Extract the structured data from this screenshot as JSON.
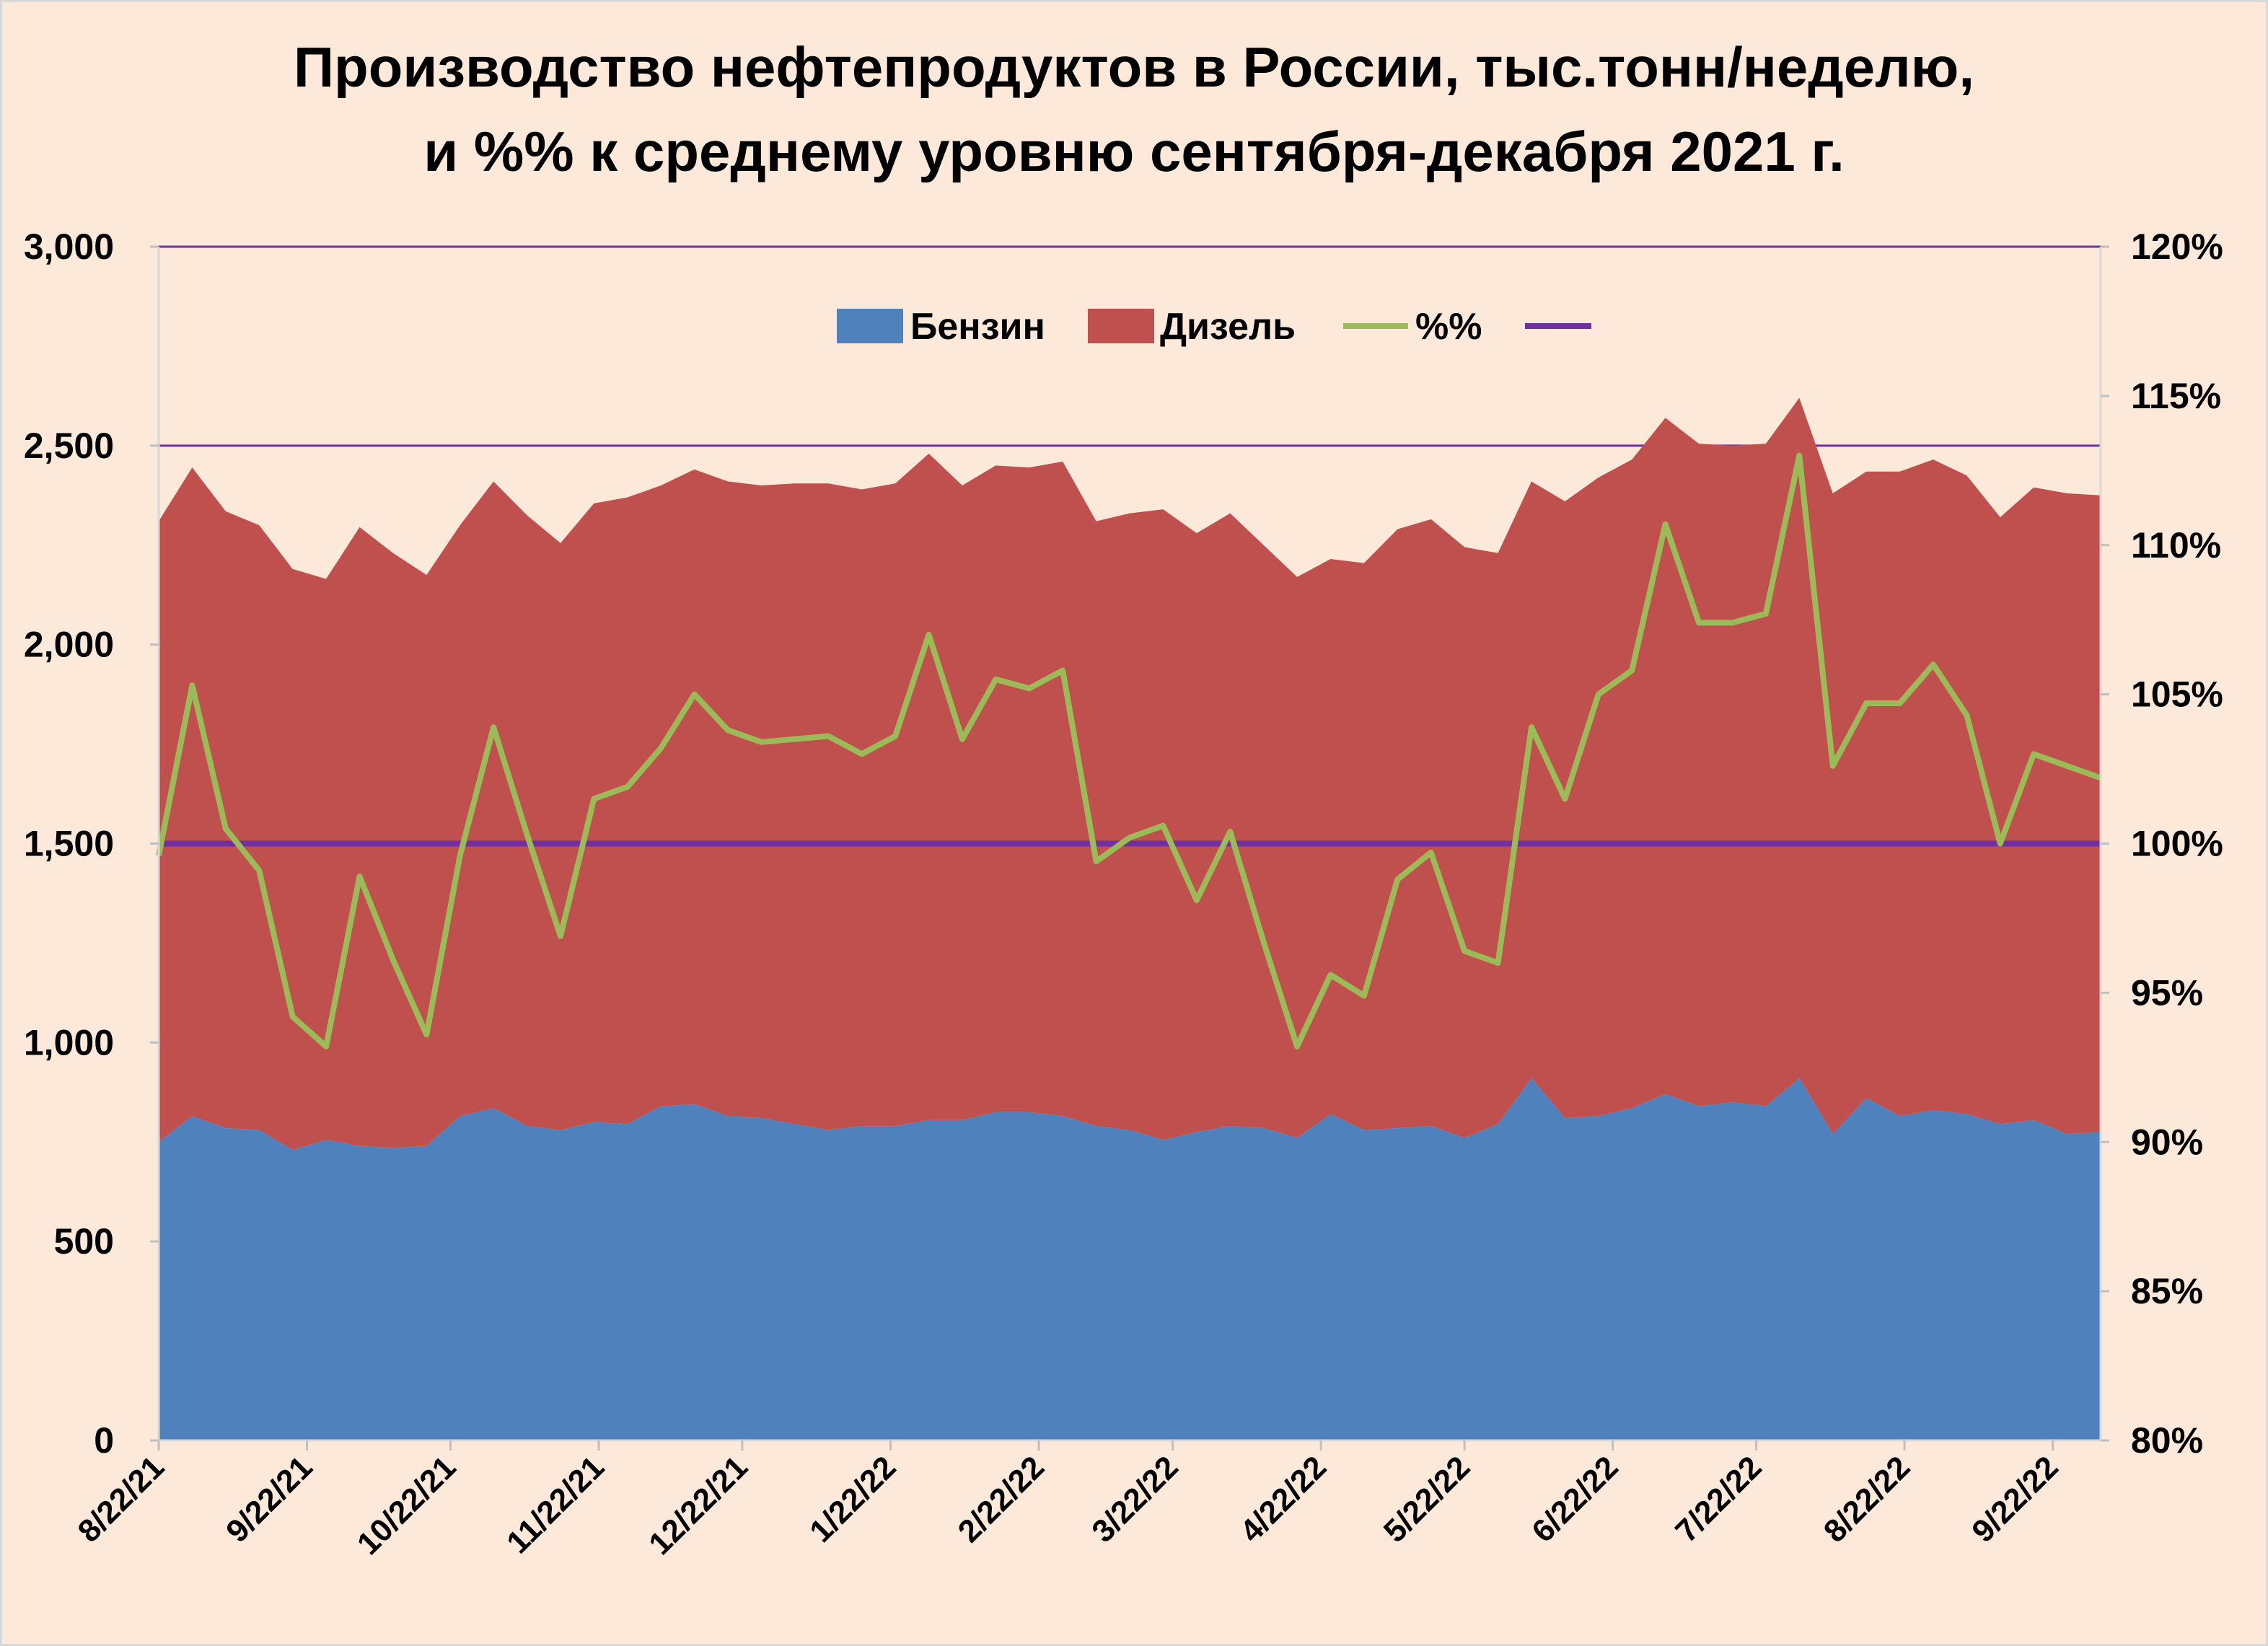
{
  "chart_data": {
    "type": "area",
    "title_line1": "Производство нефтепродуктов в России, тыс.тонн/неделю,",
    "title_line2": "и %% к среднему уровню сентября-декабря 2021 г.",
    "series": [
      {
        "name": "Бензин",
        "kind": "stacked-area",
        "color": "#4f81bd",
        "values": [
          750,
          815,
          785,
          780,
          730,
          755,
          740,
          735,
          740,
          815,
          835,
          790,
          780,
          800,
          795,
          840,
          845,
          815,
          810,
          795,
          780,
          790,
          790,
          805,
          805,
          825,
          825,
          815,
          790,
          780,
          755,
          775,
          790,
          785,
          760,
          820,
          780,
          785,
          790,
          760,
          795,
          910,
          810,
          815,
          835,
          870,
          840,
          850,
          840,
          910,
          770,
          860,
          815,
          830,
          820,
          795,
          805,
          770,
          775
        ]
      },
      {
        "name": "Дизель",
        "kind": "stacked-area",
        "color": "#c0504d",
        "values": [
          1560,
          1630,
          1550,
          1520,
          1460,
          1410,
          1555,
          1495,
          1435,
          1485,
          1575,
          1535,
          1475,
          1555,
          1575,
          1560,
          1595,
          1595,
          1590,
          1610,
          1625,
          1600,
          1615,
          1675,
          1595,
          1625,
          1620,
          1645,
          1520,
          1550,
          1585,
          1505,
          1540,
          1465,
          1410,
          1395,
          1425,
          1505,
          1525,
          1485,
          1435,
          1500,
          1550,
          1605,
          1630,
          1700,
          1665,
          1650,
          1665,
          1710,
          1610,
          1575,
          1620,
          1635,
          1605,
          1525,
          1590,
          1610,
          1600
        ]
      },
      {
        "name": "%%",
        "kind": "line",
        "color": "#9bbb59",
        "axis": "right",
        "values": [
          99.6,
          105.3,
          100.5,
          99.1,
          94.2,
          93.2,
          98.9,
          96.1,
          93.6,
          99.6,
          103.9,
          100.3,
          96.9,
          101.5,
          101.9,
          103.2,
          105.0,
          103.8,
          103.4,
          103.5,
          103.6,
          103.0,
          103.6,
          107.0,
          103.5,
          105.5,
          105.2,
          105.8,
          99.4,
          100.2,
          100.6,
          98.1,
          100.4,
          96.7,
          93.2,
          95.6,
          94.9,
          98.8,
          99.7,
          96.4,
          96.0,
          103.9,
          101.5,
          105.0,
          105.8,
          110.7,
          107.4,
          107.4,
          107.7,
          113.0,
          102.6,
          104.7,
          104.7,
          106.0,
          104.3,
          100.0,
          103.0,
          102.6,
          102.2
        ]
      },
      {
        "name": "",
        "kind": "reference-line",
        "color": "#7030a0",
        "axis": "right",
        "values": [
          100,
          100
        ]
      }
    ],
    "x_start": "2021-08-22",
    "x_step_days": 7,
    "x_tick_labels": [
      "8/22/21",
      "9/22/21",
      "10/22/21",
      "11/22/21",
      "12/22/21",
      "1/22/22",
      "2/22/22",
      "3/22/22",
      "4/22/22",
      "5/22/22",
      "6/22/22",
      "7/22/22",
      "8/22/22",
      "9/22/22"
    ],
    "y_left": {
      "min": 0,
      "max": 3000,
      "ticks": [
        "0",
        "500",
        "1,000",
        "1,500",
        "2,000",
        "2,500",
        "3,000"
      ]
    },
    "y_right": {
      "min": 80,
      "max": 120,
      "ticks": [
        "80%",
        "85%",
        "90%",
        "95%",
        "100%",
        "105%",
        "110%",
        "115%",
        "120%"
      ]
    },
    "gridlines": "purple",
    "legend_position": "top-center"
  }
}
